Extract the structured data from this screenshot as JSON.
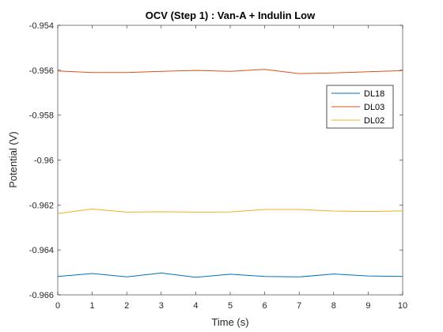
{
  "chart_data": {
    "type": "line",
    "title": "OCV (Step 1) : Van-A + Indulin Low",
    "xlabel": "Time (s)",
    "ylabel": "Potential (V)",
    "xlim": [
      0,
      10
    ],
    "ylim": [
      -0.966,
      -0.954
    ],
    "x_ticks": [
      0,
      1,
      2,
      3,
      4,
      5,
      6,
      7,
      8,
      9,
      10
    ],
    "x_tick_labels": [
      "0",
      "1",
      "2",
      "3",
      "4",
      "5",
      "6",
      "7",
      "8",
      "9",
      "10"
    ],
    "y_ticks": [
      -0.954,
      -0.956,
      -0.958,
      -0.96,
      -0.962,
      -0.964,
      -0.966
    ],
    "y_tick_labels": [
      "-0.954",
      "-0.956",
      "-0.958",
      "-0.96",
      "-0.962",
      "-0.964",
      "-0.966"
    ],
    "grid": false,
    "legend_position": "top-right",
    "x": [
      0,
      1,
      2,
      3,
      4,
      5,
      6,
      7,
      8,
      9,
      10
    ],
    "series": [
      {
        "name": "DL18",
        "color": "#0072BD",
        "values": [
          -0.96518,
          -0.96505,
          -0.9652,
          -0.96503,
          -0.96522,
          -0.96508,
          -0.96518,
          -0.9652,
          -0.96507,
          -0.96516,
          -0.96518
        ]
      },
      {
        "name": "DL03",
        "color": "#D95319",
        "values": [
          -0.95603,
          -0.9561,
          -0.9561,
          -0.95605,
          -0.95601,
          -0.95605,
          -0.95596,
          -0.95615,
          -0.95612,
          -0.95607,
          -0.95602
        ]
      },
      {
        "name": "DL02",
        "color": "#EDB120",
        "values": [
          -0.96238,
          -0.96218,
          -0.96232,
          -0.9623,
          -0.96232,
          -0.96231,
          -0.9622,
          -0.9622,
          -0.96227,
          -0.96229,
          -0.96226
        ]
      }
    ]
  }
}
